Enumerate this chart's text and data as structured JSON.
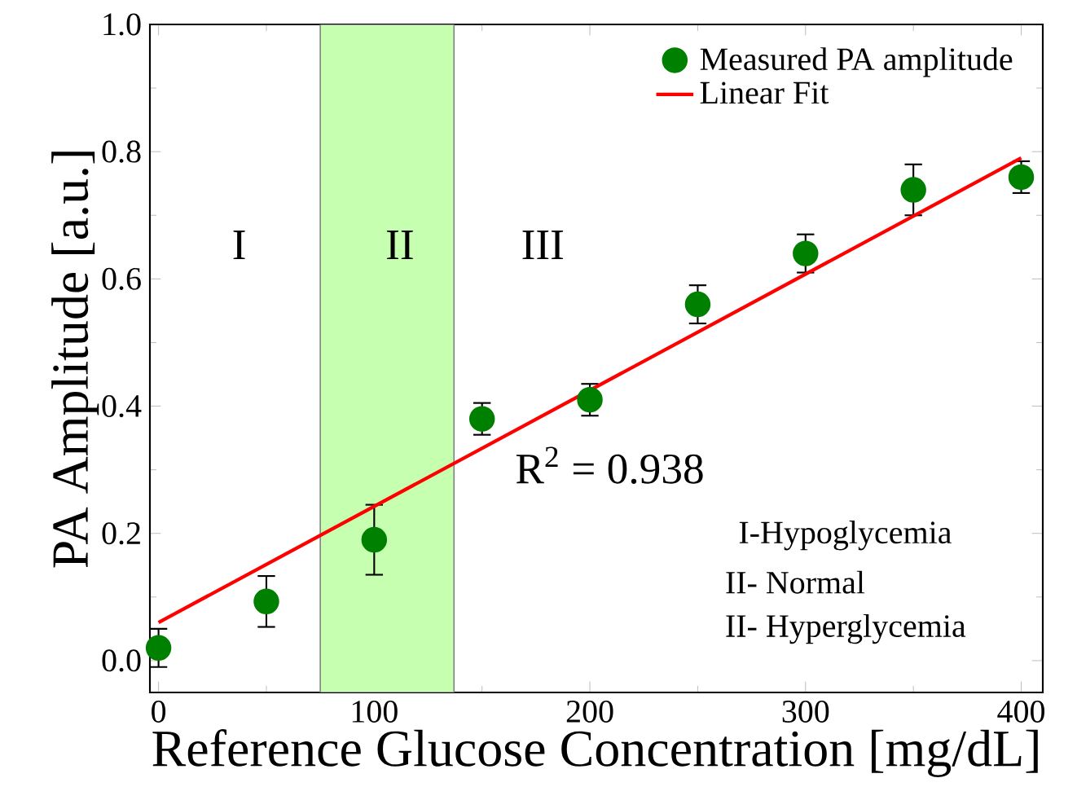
{
  "chart_data": {
    "type": "scatter",
    "xlabel": "Reference Glucose Concentration [mg/dL]",
    "ylabel": "PA Amplitude [a.u.]",
    "xlim": [
      -4,
      410
    ],
    "ylim": [
      -0.05,
      1.0
    ],
    "xticks": [
      0,
      100,
      200,
      300,
      400
    ],
    "yticks": [
      {
        "value": 0.0,
        "label": "0.0"
      },
      {
        "value": 0.2,
        "label": "0.2"
      },
      {
        "value": 0.4,
        "label": "0.4"
      },
      {
        "value": 0.6,
        "label": "0.6"
      },
      {
        "value": 0.8,
        "label": "0.8"
      },
      {
        "value": 1.0,
        "label": "1.0"
      }
    ],
    "x": [
      0,
      50,
      100,
      150,
      200,
      250,
      300,
      350,
      400
    ],
    "series": [
      {
        "name": "Measured PA amplitude",
        "color": "#008000",
        "marker": "circle",
        "values": [
          0.02,
          0.093,
          0.19,
          0.38,
          0.41,
          0.56,
          0.64,
          0.74,
          0.76
        ],
        "errors": [
          0.03,
          0.04,
          0.055,
          0.025,
          0.025,
          0.03,
          0.03,
          0.04,
          0.025
        ]
      },
      {
        "name": "Linear Fit",
        "type": "line",
        "color": "#ff0000",
        "marker": "none",
        "x": [
          0,
          400
        ],
        "values": [
          0.06,
          0.79
        ]
      }
    ],
    "bands": [
      {
        "axis": "x",
        "from": 75,
        "to": 137,
        "color": "#c6ffb0"
      }
    ],
    "annotations": [
      "I",
      "II",
      "III",
      "R$^{2}$ = 0.938",
      "I-Hypoglycemia",
      "II- Normal",
      "II- Hyperglycemia"
    ],
    "legend": "top right",
    "grid": false
  }
}
